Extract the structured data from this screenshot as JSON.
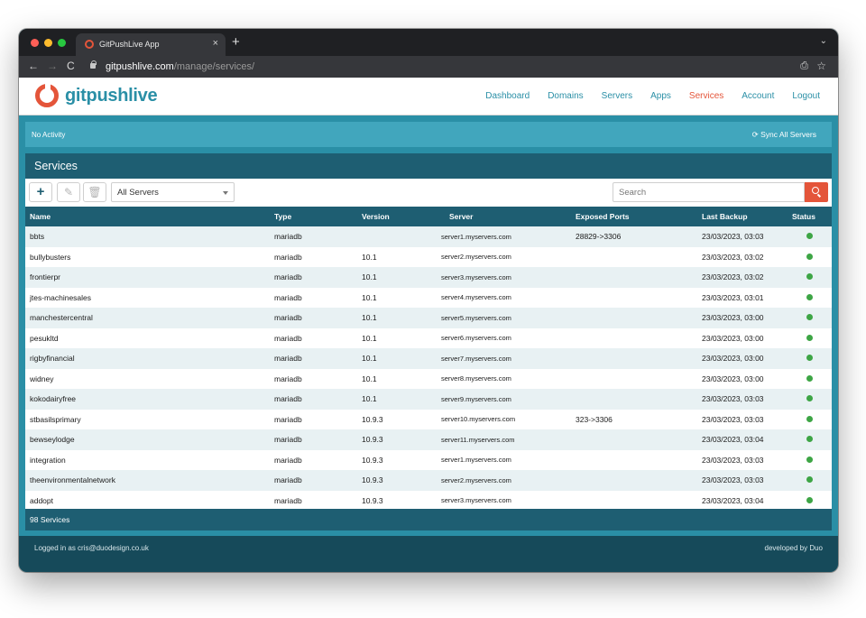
{
  "browser": {
    "tab_title": "GitPushLive App",
    "tab_close": "×",
    "new_tab": "+",
    "tab_menu": "⌄",
    "url_domain": "gitpushlive.com",
    "url_path": "/manage/services/",
    "back": "←",
    "forward": "→",
    "reload": "C",
    "share": "⎙",
    "star": "☆"
  },
  "app": {
    "logo_text": "gitpushlive",
    "brand_color": "#e4553a",
    "accent_color": "#2a8fa6",
    "nav": [
      {
        "label": "Dashboard",
        "active": false
      },
      {
        "label": "Domains",
        "active": false
      },
      {
        "label": "Servers",
        "active": false
      },
      {
        "label": "Apps",
        "active": false
      },
      {
        "label": "Services",
        "active": true
      },
      {
        "label": "Account",
        "active": false
      },
      {
        "label": "Logout",
        "active": false
      }
    ]
  },
  "activity": {
    "text": "No Activity",
    "sync_label": "Sync All Servers",
    "sync_icon": "⟳"
  },
  "services": {
    "title": "Services",
    "toolbar": {
      "add_icon": "+",
      "edit_icon": "✎",
      "delete_icon": "🗑",
      "server_filter": "All Servers",
      "search_placeholder": "Search"
    },
    "columns": [
      "Name",
      "Type",
      "Version",
      "Server",
      "Exposed Ports",
      "Last Backup",
      "Status"
    ],
    "rows": [
      {
        "name": "bbts",
        "type": "mariadb",
        "version": "",
        "server": "server1.myservers.com",
        "ports": "28829->3306",
        "backup": "23/03/2023, 03:03",
        "status": "green"
      },
      {
        "name": "bullybusters",
        "type": "mariadb",
        "version": "10.1",
        "server": "server2.myservers.com",
        "ports": "",
        "backup": "23/03/2023, 03:02",
        "status": "green"
      },
      {
        "name": "frontierpr",
        "type": "mariadb",
        "version": "10.1",
        "server": "server3.myservers.com",
        "ports": "",
        "backup": "23/03/2023, 03:02",
        "status": "green"
      },
      {
        "name": "jtes-machinesales",
        "type": "mariadb",
        "version": "10.1",
        "server": "server4.myservers.com",
        "ports": "",
        "backup": "23/03/2023, 03:01",
        "status": "green"
      },
      {
        "name": "manchestercentral",
        "type": "mariadb",
        "version": "10.1",
        "server": "server5.myservers.com",
        "ports": "",
        "backup": "23/03/2023, 03:00",
        "status": "green"
      },
      {
        "name": "pesukltd",
        "type": "mariadb",
        "version": "10.1",
        "server": "server6.myservers.com",
        "ports": "",
        "backup": "23/03/2023, 03:00",
        "status": "green"
      },
      {
        "name": "rigbyfinancial",
        "type": "mariadb",
        "version": "10.1",
        "server": "server7.myservers.com",
        "ports": "",
        "backup": "23/03/2023, 03:00",
        "status": "green"
      },
      {
        "name": "widney",
        "type": "mariadb",
        "version": "10.1",
        "server": "server8.myservers.com",
        "ports": "",
        "backup": "23/03/2023, 03:00",
        "status": "green"
      },
      {
        "name": "kokodairyfree",
        "type": "mariadb",
        "version": "10.1",
        "server": "server9.myservers.com",
        "ports": "",
        "backup": "23/03/2023, 03:03",
        "status": "green"
      },
      {
        "name": "stbasilsprimary",
        "type": "mariadb",
        "version": "10.9.3",
        "server": "server10.myservers.com",
        "ports": "323->3306",
        "backup": "23/03/2023, 03:03",
        "status": "green"
      },
      {
        "name": "bewseylodge",
        "type": "mariadb",
        "version": "10.9.3",
        "server": "server11.myservers.com",
        "ports": "",
        "backup": "23/03/2023, 03:04",
        "status": "green"
      },
      {
        "name": "integration",
        "type": "mariadb",
        "version": "10.9.3",
        "server": "server1.myservers.com",
        "ports": "",
        "backup": "23/03/2023, 03:03",
        "status": "green"
      },
      {
        "name": "theenvironmentalnetwork",
        "type": "mariadb",
        "version": "10.9.3",
        "server": "server2.myservers.com",
        "ports": "",
        "backup": "23/03/2023, 03:03",
        "status": "green"
      },
      {
        "name": "addopt",
        "type": "mariadb",
        "version": "10.9.3",
        "server": "server3.myservers.com",
        "ports": "",
        "backup": "23/03/2023, 03:04",
        "status": "green"
      }
    ],
    "status_color": "#3da545",
    "count": "98 Services"
  },
  "footer": {
    "logged_in": "Logged in as cris@duodesign.co.uk",
    "credit": "developed by Duo"
  }
}
